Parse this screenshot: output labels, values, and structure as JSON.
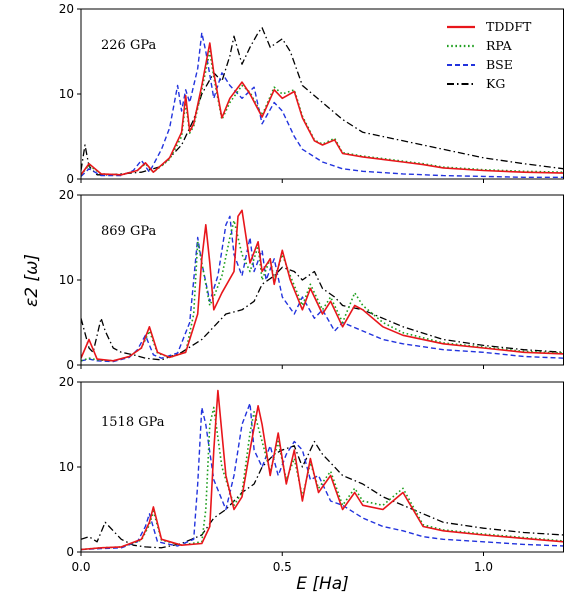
{
  "chart_data": {
    "type": "line",
    "xlabel": "E [Ha]",
    "ylabel": "ε2 [ω]",
    "xlim": [
      0.0,
      1.2
    ],
    "ylim": [
      0,
      20
    ],
    "x_ticks": [
      "0.0",
      "0.5",
      "1.0"
    ],
    "y_ticks": [
      "0",
      "10",
      "20"
    ],
    "grid": false,
    "legend_position": "top-right",
    "legend": [
      {
        "name": "TDDFT",
        "color": "#e8161b",
        "style": "solid"
      },
      {
        "name": "RPA",
        "color": "#1f9e1f",
        "style": "dotted"
      },
      {
        "name": "BSE",
        "color": "#2233dd",
        "style": "dashed"
      },
      {
        "name": "KG",
        "color": "#000000",
        "style": "dashdot"
      }
    ],
    "panels": [
      {
        "label": "226 GPa",
        "series": [
          {
            "name": "TDDFT",
            "x": [
              0.0,
              0.02,
              0.05,
              0.1,
              0.14,
              0.16,
              0.18,
              0.22,
              0.25,
              0.26,
              0.27,
              0.28,
              0.3,
              0.32,
              0.33,
              0.35,
              0.37,
              0.4,
              0.42,
              0.45,
              0.48,
              0.5,
              0.53,
              0.55,
              0.58,
              0.6,
              0.63,
              0.65,
              0.7,
              0.75,
              0.8,
              0.85,
              0.9,
              1.0,
              1.1,
              1.2
            ],
            "y": [
              0.5,
              1.8,
              0.6,
              0.5,
              1.0,
              1.9,
              0.8,
              2.5,
              5.5,
              9.8,
              5.6,
              6.5,
              11,
              16,
              12.5,
              7.2,
              9.5,
              11.4,
              10,
              7.3,
              10.5,
              9.5,
              10.3,
              7.2,
              4.5,
              4.0,
              4.6,
              3.0,
              2.6,
              2.3,
              2.0,
              1.7,
              1.3,
              1.0,
              0.8,
              0.7
            ]
          },
          {
            "name": "RPA",
            "x": [
              0.0,
              0.02,
              0.05,
              0.1,
              0.14,
              0.16,
              0.18,
              0.22,
              0.25,
              0.26,
              0.27,
              0.28,
              0.3,
              0.32,
              0.33,
              0.35,
              0.37,
              0.4,
              0.42,
              0.45,
              0.48,
              0.5,
              0.53,
              0.55,
              0.58,
              0.6,
              0.63,
              0.65,
              0.7,
              0.75,
              0.8,
              0.85,
              0.9,
              1.0,
              1.1,
              1.2
            ],
            "y": [
              0.5,
              1.6,
              0.6,
              0.5,
              1.0,
              1.8,
              0.8,
              2.3,
              5.0,
              9.0,
              5.4,
              6.2,
              10.5,
              15,
              12.0,
              7.0,
              9.0,
              11.0,
              10.2,
              7.5,
              10.8,
              10.0,
              10.5,
              7.4,
              4.6,
              4.1,
              4.8,
              3.1,
              2.7,
              2.4,
              2.1,
              1.8,
              1.4,
              1.1,
              0.9,
              0.8
            ]
          },
          {
            "name": "BSE",
            "x": [
              0.0,
              0.02,
              0.05,
              0.1,
              0.13,
              0.15,
              0.17,
              0.2,
              0.22,
              0.24,
              0.25,
              0.26,
              0.27,
              0.29,
              0.3,
              0.31,
              0.33,
              0.35,
              0.37,
              0.4,
              0.43,
              0.45,
              0.48,
              0.5,
              0.53,
              0.55,
              0.6,
              0.65,
              0.7,
              0.8,
              0.9,
              1.0,
              1.1,
              1.2
            ],
            "y": [
              0.3,
              1.2,
              0.4,
              0.4,
              1.0,
              2.2,
              0.8,
              3.5,
              6.0,
              11.0,
              8.0,
              10.5,
              9.0,
              13.0,
              17.2,
              15.0,
              9.5,
              12.5,
              11.0,
              9.5,
              10.8,
              6.5,
              9.0,
              8.0,
              5.0,
              3.5,
              2.0,
              1.2,
              0.9,
              0.6,
              0.4,
              0.3,
              0.2,
              0.2
            ]
          },
          {
            "name": "KG",
            "x": [
              0.0,
              0.01,
              0.02,
              0.04,
              0.07,
              0.1,
              0.15,
              0.2,
              0.25,
              0.28,
              0.3,
              0.33,
              0.35,
              0.37,
              0.38,
              0.4,
              0.42,
              0.44,
              0.45,
              0.47,
              0.5,
              0.52,
              0.55,
              0.6,
              0.65,
              0.7,
              0.8,
              0.9,
              1.0,
              1.1,
              1.2
            ],
            "y": [
              1.0,
              4.0,
              1.5,
              0.5,
              0.5,
              0.6,
              0.8,
              1.5,
              4.0,
              7.0,
              10.0,
              12.5,
              11.5,
              14.5,
              16.8,
              13.5,
              15.5,
              17.2,
              17.8,
              15.5,
              16.5,
              15.0,
              11.0,
              9.0,
              7.0,
              5.5,
              4.5,
              3.5,
              2.5,
              1.8,
              1.2
            ]
          }
        ]
      },
      {
        "label": "869 GPa",
        "series": [
          {
            "name": "TDDFT",
            "x": [
              0.0,
              0.02,
              0.04,
              0.08,
              0.12,
              0.15,
              0.17,
              0.19,
              0.22,
              0.26,
              0.29,
              0.3,
              0.31,
              0.32,
              0.33,
              0.35,
              0.38,
              0.39,
              0.4,
              0.42,
              0.44,
              0.45,
              0.47,
              0.48,
              0.5,
              0.52,
              0.55,
              0.57,
              0.6,
              0.62,
              0.65,
              0.68,
              0.7,
              0.75,
              0.8,
              0.9,
              1.0,
              1.1,
              1.2
            ],
            "y": [
              0.8,
              3.0,
              0.7,
              0.5,
              1.0,
              2.0,
              4.5,
              1.5,
              0.9,
              1.5,
              6.0,
              12.5,
              16.5,
              12.0,
              6.5,
              8.5,
              11.0,
              17.5,
              18.2,
              12.0,
              14.5,
              11.0,
              12.5,
              9.5,
              13.5,
              10.0,
              6.5,
              9.0,
              6.0,
              7.5,
              4.5,
              7.0,
              6.5,
              4.5,
              3.5,
              2.5,
              2.0,
              1.5,
              1.3
            ]
          },
          {
            "name": "RPA",
            "x": [
              0.0,
              0.02,
              0.04,
              0.08,
              0.12,
              0.15,
              0.17,
              0.19,
              0.22,
              0.26,
              0.28,
              0.29,
              0.3,
              0.32,
              0.33,
              0.35,
              0.37,
              0.38,
              0.4,
              0.42,
              0.44,
              0.45,
              0.47,
              0.48,
              0.5,
              0.52,
              0.55,
              0.57,
              0.6,
              0.62,
              0.65,
              0.68,
              0.7,
              0.75,
              0.8,
              0.9,
              1.0,
              1.1,
              1.2
            ],
            "y": [
              0.5,
              0.8,
              0.6,
              0.5,
              1.0,
              2.0,
              4.0,
              1.4,
              0.9,
              1.5,
              6.0,
              14.5,
              12.0,
              7.0,
              8.0,
              10.5,
              15.0,
              17.0,
              13.0,
              11.0,
              14.0,
              10.0,
              12.5,
              10.0,
              13.0,
              10.5,
              7.0,
              9.5,
              6.5,
              8.0,
              5.0,
              8.5,
              7.0,
              5.0,
              3.8,
              2.6,
              2.1,
              1.6,
              1.4
            ]
          },
          {
            "name": "BSE",
            "x": [
              0.0,
              0.02,
              0.04,
              0.08,
              0.12,
              0.14,
              0.16,
              0.18,
              0.2,
              0.24,
              0.27,
              0.28,
              0.29,
              0.3,
              0.32,
              0.34,
              0.36,
              0.37,
              0.38,
              0.4,
              0.42,
              0.43,
              0.45,
              0.46,
              0.48,
              0.5,
              0.53,
              0.55,
              0.58,
              0.6,
              0.63,
              0.65,
              0.7,
              0.75,
              0.8,
              0.9,
              1.0,
              1.1,
              1.2
            ],
            "y": [
              0.5,
              0.7,
              0.5,
              0.4,
              0.9,
              1.8,
              3.5,
              1.2,
              0.8,
              1.4,
              5.0,
              10.0,
              15.0,
              12.0,
              7.5,
              10.5,
              16.5,
              17.5,
              13.0,
              10.5,
              15.0,
              11.0,
              13.5,
              10.0,
              12.5,
              8.0,
              6.0,
              8.0,
              5.5,
              6.5,
              4.0,
              5.0,
              4.0,
              3.0,
              2.5,
              1.8,
              1.5,
              1.0,
              0.8
            ]
          },
          {
            "name": "KG",
            "x": [
              0.0,
              0.02,
              0.03,
              0.05,
              0.06,
              0.08,
              0.1,
              0.13,
              0.16,
              0.2,
              0.25,
              0.3,
              0.33,
              0.36,
              0.4,
              0.43,
              0.45,
              0.48,
              0.5,
              0.53,
              0.55,
              0.58,
              0.6,
              0.63,
              0.65,
              0.7,
              0.75,
              0.8,
              0.9,
              1.0,
              1.1,
              1.2
            ],
            "y": [
              5.5,
              2.0,
              1.5,
              5.5,
              4.0,
              2.0,
              1.5,
              1.2,
              0.8,
              0.6,
              1.5,
              3.0,
              4.5,
              6.0,
              6.5,
              7.5,
              9.5,
              10.5,
              11.5,
              11.0,
              10.0,
              11.0,
              9.0,
              8.0,
              7.0,
              6.5,
              5.5,
              4.5,
              3.0,
              2.3,
              1.8,
              1.5
            ]
          }
        ]
      },
      {
        "label": "1518 GPa",
        "series": [
          {
            "name": "TDDFT",
            "x": [
              0.0,
              0.05,
              0.1,
              0.15,
              0.17,
              0.18,
              0.2,
              0.25,
              0.3,
              0.32,
              0.33,
              0.34,
              0.36,
              0.38,
              0.4,
              0.42,
              0.44,
              0.45,
              0.47,
              0.49,
              0.51,
              0.53,
              0.55,
              0.57,
              0.59,
              0.62,
              0.65,
              0.68,
              0.7,
              0.75,
              0.8,
              0.85,
              0.9,
              1.0,
              1.1,
              1.2
            ],
            "y": [
              0.3,
              0.5,
              0.6,
              1.5,
              3.5,
              5.3,
              1.5,
              0.8,
              1.0,
              3.0,
              12.0,
              19.0,
              9.0,
              5.0,
              6.5,
              12.0,
              17.2,
              15.0,
              9.0,
              14.0,
              8.0,
              12.0,
              6.0,
              11.0,
              7.0,
              9.0,
              5.0,
              7.0,
              5.5,
              5.0,
              7.0,
              3.0,
              2.5,
              2.0,
              1.6,
              1.2
            ]
          },
          {
            "name": "RPA",
            "x": [
              0.0,
              0.05,
              0.1,
              0.15,
              0.17,
              0.18,
              0.2,
              0.25,
              0.3,
              0.31,
              0.32,
              0.33,
              0.35,
              0.38,
              0.4,
              0.42,
              0.43,
              0.45,
              0.47,
              0.49,
              0.51,
              0.53,
              0.55,
              0.57,
              0.59,
              0.62,
              0.65,
              0.68,
              0.7,
              0.75,
              0.8,
              0.85,
              0.9,
              1.0,
              1.1,
              1.2
            ],
            "y": [
              0.3,
              0.5,
              0.6,
              1.4,
              3.2,
              4.8,
              1.4,
              0.8,
              1.2,
              5.0,
              15.0,
              17.0,
              10.0,
              5.5,
              7.0,
              14.0,
              16.5,
              13.0,
              9.5,
              13.0,
              8.5,
              11.0,
              6.5,
              10.5,
              7.5,
              9.5,
              5.5,
              7.5,
              6.0,
              5.5,
              7.5,
              3.2,
              2.6,
              2.1,
              1.7,
              1.3
            ]
          },
          {
            "name": "BSE",
            "x": [
              0.0,
              0.05,
              0.1,
              0.14,
              0.16,
              0.17,
              0.19,
              0.24,
              0.28,
              0.29,
              0.3,
              0.31,
              0.33,
              0.36,
              0.38,
              0.4,
              0.42,
              0.43,
              0.45,
              0.47,
              0.49,
              0.51,
              0.53,
              0.55,
              0.57,
              0.59,
              0.62,
              0.65,
              0.7,
              0.75,
              0.8,
              0.85,
              0.9,
              1.0,
              1.1,
              1.2
            ],
            "y": [
              0.3,
              0.4,
              0.5,
              1.2,
              3.0,
              4.5,
              1.2,
              0.7,
              1.5,
              8.0,
              17.0,
              15.0,
              8.5,
              5.0,
              9.0,
              15.0,
              17.5,
              12.0,
              10.0,
              12.5,
              9.0,
              11.5,
              13.0,
              12.0,
              8.5,
              9.0,
              6.0,
              5.5,
              4.0,
              3.0,
              2.5,
              1.8,
              1.5,
              1.2,
              0.9,
              0.7
            ]
          },
          {
            "name": "KG",
            "x": [
              0.0,
              0.02,
              0.04,
              0.06,
              0.08,
              0.1,
              0.13,
              0.16,
              0.2,
              0.25,
              0.3,
              0.33,
              0.36,
              0.38,
              0.4,
              0.43,
              0.45,
              0.48,
              0.5,
              0.53,
              0.55,
              0.58,
              0.6,
              0.63,
              0.65,
              0.7,
              0.75,
              0.8,
              0.9,
              1.0,
              1.1,
              1.2
            ],
            "y": [
              1.5,
              1.8,
              1.2,
              3.5,
              2.5,
              1.5,
              0.8,
              0.6,
              0.5,
              1.0,
              2.0,
              4.0,
              5.0,
              6.0,
              7.0,
              8.0,
              10.0,
              11.5,
              12.0,
              12.5,
              10.0,
              13.0,
              11.5,
              10.0,
              9.0,
              8.0,
              6.5,
              5.5,
              3.5,
              2.8,
              2.3,
              2.0
            ]
          }
        ]
      }
    ]
  }
}
